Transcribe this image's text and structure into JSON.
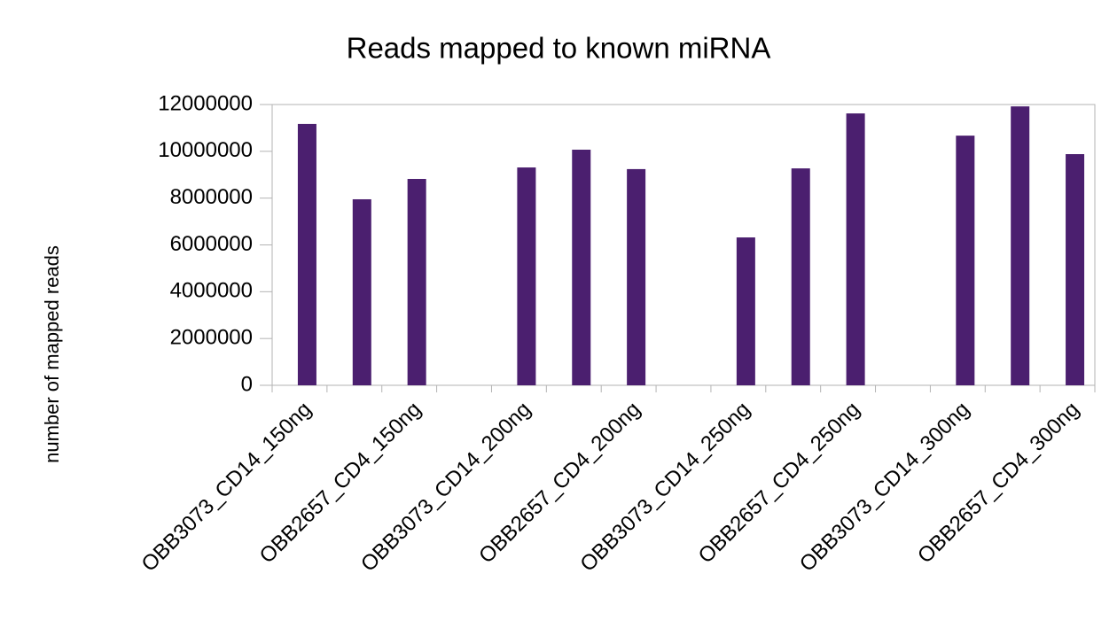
{
  "chart_data": {
    "type": "bar",
    "title": "Reads mapped to known miRNA",
    "y_label": "number of mapped reads",
    "categories": [
      "OBB3073_CD14_150ng",
      null,
      "OBB2657_CD4_150ng",
      null,
      "OBB3073_CD14_200ng",
      null,
      "OBB2657_CD4_200ng",
      null,
      "OBB3073_CD14_250ng",
      null,
      "OBB2657_CD4_250ng",
      null,
      "OBB3073_CD14_300ng",
      null,
      "OBB2657_CD4_300ng"
    ],
    "values": [
      11170000,
      7950000,
      8820000,
      null,
      9310000,
      10070000,
      9240000,
      null,
      6320000,
      9270000,
      11620000,
      null,
      10670000,
      11920000,
      9880000
    ],
    "color": "#4b1f6f",
    "ylim": [
      0,
      12000000
    ],
    "yticks": [
      0,
      2000000,
      4000000,
      6000000,
      8000000,
      10000000,
      12000000
    ],
    "grid": false
  }
}
